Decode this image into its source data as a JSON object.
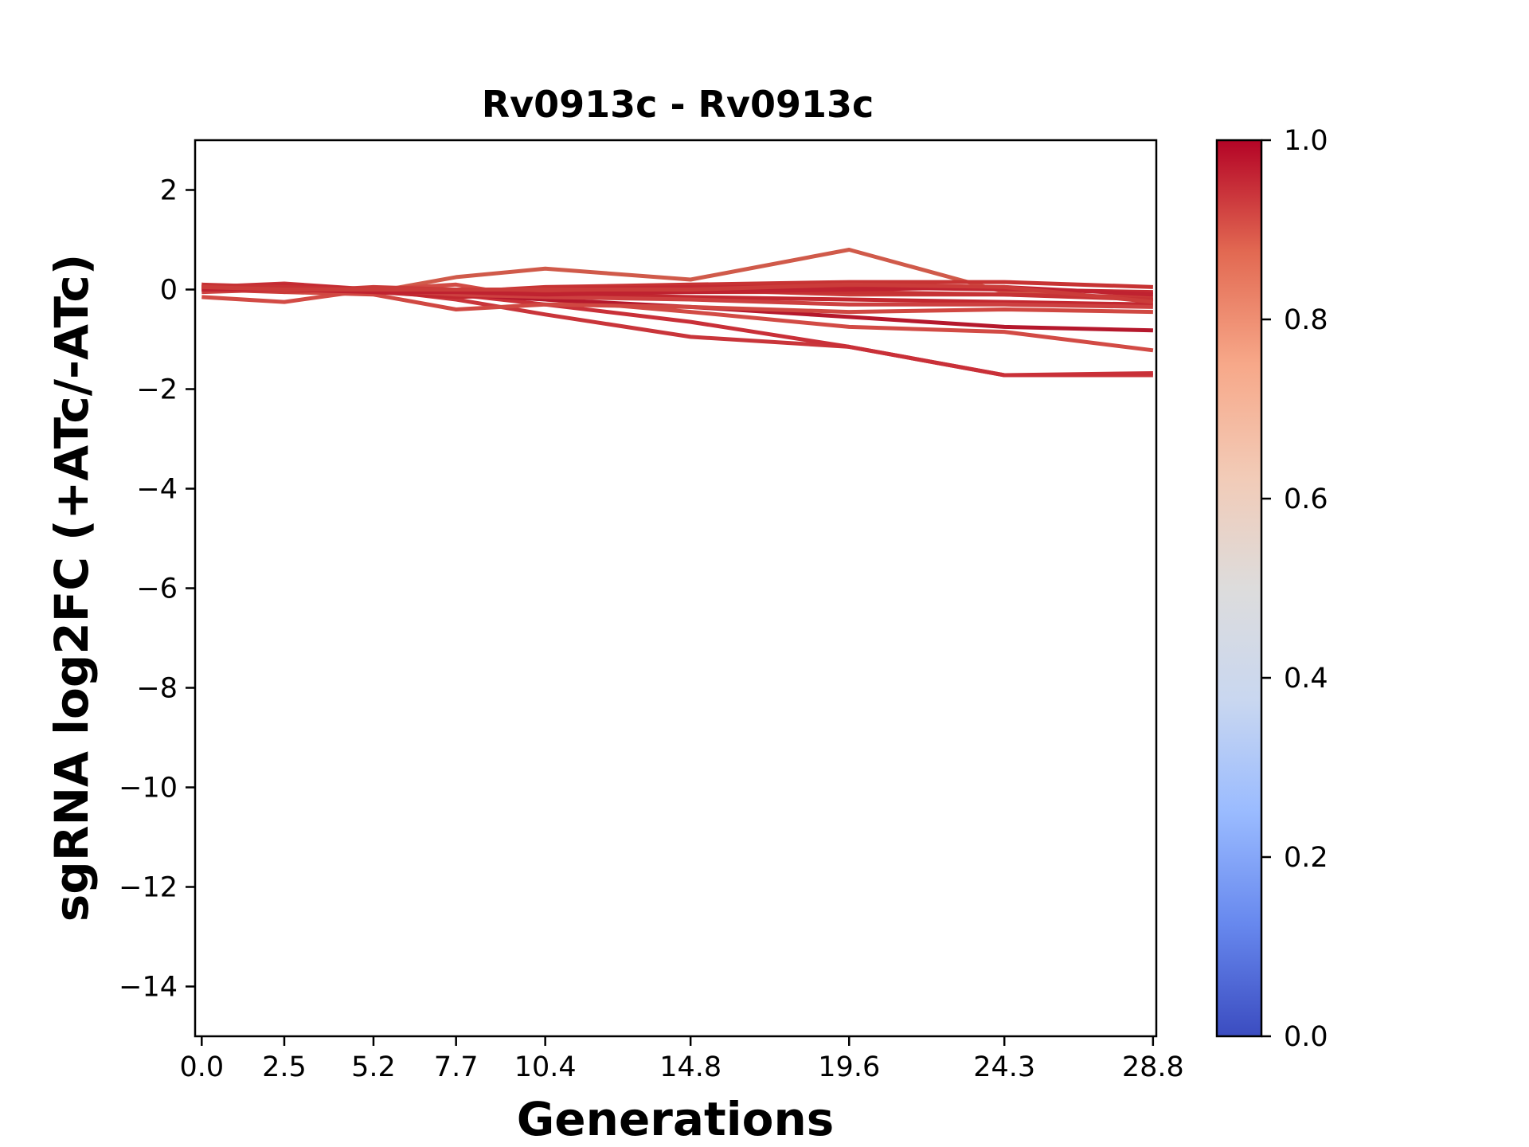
{
  "chart_data": {
    "type": "line",
    "title": "Rv0913c - Rv0913c",
    "xlabel": "Generations",
    "ylabel": "sgRNA log2FC (+ATc/-ATc)",
    "x": [
      0.0,
      2.5,
      5.2,
      7.7,
      10.4,
      14.8,
      19.6,
      24.3,
      28.8
    ],
    "x_tick_labels": [
      "0.0",
      "2.5",
      "5.2",
      "7.7",
      "10.4",
      "14.8",
      "19.6",
      "24.3",
      "28.8"
    ],
    "xlim": [
      -0.2,
      28.9
    ],
    "ylim": [
      -15,
      3
    ],
    "y_ticks": [
      2,
      0,
      -2,
      -4,
      -6,
      -8,
      -10,
      -12,
      -14
    ],
    "y_tick_labels": [
      "2",
      "0",
      "−2",
      "−4",
      "−6",
      "−8",
      "−10",
      "−12",
      "−14"
    ],
    "grid": false,
    "series": [
      {
        "color": "#d05a4a",
        "values": [
          0.05,
          0.02,
          -0.05,
          0.25,
          0.42,
          0.2,
          0.8,
          -0.05,
          -0.2
        ]
      },
      {
        "color": "#c9353a",
        "values": [
          0.05,
          0.12,
          0.0,
          -0.2,
          -0.5,
          -0.95,
          -1.15,
          -1.72,
          -1.72
        ]
      },
      {
        "color": "#c93038",
        "values": [
          0.0,
          0.05,
          -0.05,
          -0.1,
          -0.3,
          -0.65,
          -1.15,
          -1.72,
          -1.68
        ]
      },
      {
        "color": "#d24b45",
        "values": [
          -0.15,
          -0.25,
          0.0,
          0.1,
          -0.2,
          -0.45,
          -0.75,
          -0.85,
          -1.22
        ]
      },
      {
        "color": "#b5182c",
        "values": [
          0.05,
          0.0,
          -0.05,
          -0.1,
          -0.2,
          -0.35,
          -0.55,
          -0.75,
          -0.82
        ]
      },
      {
        "color": "#d04842",
        "values": [
          0.1,
          -0.05,
          -0.1,
          -0.4,
          -0.3,
          -0.35,
          -0.45,
          -0.4,
          -0.45
        ]
      },
      {
        "color": "#c73333",
        "values": [
          0.0,
          0.05,
          0.0,
          -0.05,
          0.05,
          0.1,
          0.15,
          0.15,
          0.05
        ]
      },
      {
        "color": "#c42a32",
        "values": [
          0.05,
          0.1,
          0.0,
          -0.1,
          0.0,
          0.05,
          0.05,
          0.0,
          -0.05
        ]
      },
      {
        "color": "#ca3a38",
        "values": [
          0.0,
          -0.05,
          0.05,
          0.0,
          -0.05,
          0.0,
          -0.1,
          -0.1,
          -0.15
        ]
      },
      {
        "color": "#c22830",
        "values": [
          0.05,
          0.05,
          -0.05,
          -0.15,
          -0.1,
          -0.15,
          -0.2,
          -0.25,
          -0.3
        ]
      },
      {
        "color": "#cd4040",
        "values": [
          -0.05,
          0.0,
          0.0,
          -0.1,
          -0.15,
          -0.2,
          -0.3,
          -0.3,
          -0.35
        ]
      },
      {
        "color": "#c63234",
        "values": [
          0.1,
          0.05,
          0.0,
          -0.05,
          0.0,
          -0.05,
          -0.05,
          -0.1,
          -0.2
        ]
      },
      {
        "color": "#bf2230",
        "values": [
          0.0,
          0.0,
          -0.05,
          -0.05,
          -0.1,
          -0.05,
          0.0,
          0.05,
          -0.1
        ]
      },
      {
        "color": "#cb3c3a",
        "values": [
          0.05,
          0.0,
          0.0,
          0.0,
          0.0,
          0.0,
          0.1,
          0.05,
          -0.25
        ]
      }
    ],
    "colorbar": {
      "min": 0.0,
      "max": 1.0,
      "ticks": [
        1.0,
        0.8,
        0.6,
        0.4,
        0.2,
        0.0
      ],
      "tick_labels": [
        "1.0",
        "0.8",
        "0.6",
        "0.4",
        "0.2",
        "0.0"
      ],
      "colormap": "coolwarm",
      "stops": [
        "#3b4cc0",
        "#6788ee",
        "#9abbff",
        "#c9d7f0",
        "#dddcdc",
        "#f2cbb7",
        "#f7a889",
        "#e26952",
        "#b40426"
      ]
    }
  }
}
